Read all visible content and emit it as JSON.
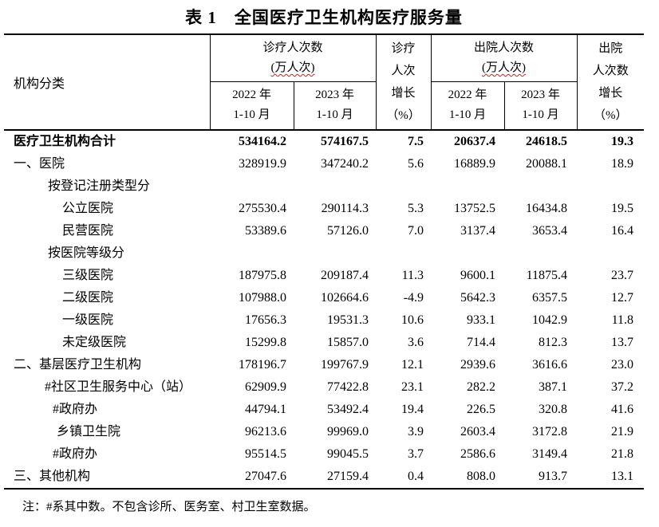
{
  "title": "表 1　全国医疗卫生机构医疗服务量",
  "header": {
    "org_col": "机构分类",
    "outpatient_group": {
      "line1": "诊疗人次数",
      "line2": "(万人次)"
    },
    "outpatient_growth": {
      "line1": "诊疗",
      "line2": "人次",
      "line3": "增长",
      "line4": "（%）"
    },
    "discharge_group": {
      "line1": "出院人次数",
      "line2": "(万人次)"
    },
    "discharge_growth": {
      "line1": "出院",
      "line2": "人次数",
      "line3": "增长",
      "line4": "（%）"
    },
    "year_2022": {
      "line1": "2022 年",
      "line2": "1-10 月"
    },
    "year_2023": {
      "line1": "2023 年",
      "line2": "1-10 月"
    }
  },
  "table": {
    "rows": [
      {
        "label": "医疗卫生机构合计",
        "indent": 12,
        "bold": true,
        "values": [
          "534164.2",
          "574167.5",
          "7.5",
          "20637.4",
          "24618.5",
          "19.3"
        ]
      },
      {
        "label": "一、医院",
        "indent": 12,
        "bold": false,
        "values": [
          "328919.9",
          "347240.2",
          "5.6",
          "16889.9",
          "20088.1",
          "18.9"
        ]
      },
      {
        "label": "按登记注册类型分",
        "indent": 55,
        "bold": false,
        "values": [
          "",
          "",
          "",
          "",
          "",
          ""
        ]
      },
      {
        "label": "公立医院",
        "indent": 73,
        "bold": false,
        "values": [
          "275530.4",
          "290114.3",
          "5.3",
          "13752.5",
          "16434.8",
          "19.5"
        ]
      },
      {
        "label": "民营医院",
        "indent": 73,
        "bold": false,
        "values": [
          "53389.6",
          "57126.0",
          "7.0",
          "3137.4",
          "3653.4",
          "16.4"
        ]
      },
      {
        "label": "按医院等级分",
        "indent": 55,
        "bold": false,
        "values": [
          "",
          "",
          "",
          "",
          "",
          ""
        ]
      },
      {
        "label": "三级医院",
        "indent": 73,
        "bold": false,
        "values": [
          "187975.8",
          "209187.4",
          "11.3",
          "9600.1",
          "11875.4",
          "23.7"
        ]
      },
      {
        "label": "二级医院",
        "indent": 73,
        "bold": false,
        "values": [
          "107988.0",
          "102664.6",
          "-4.9",
          "5642.3",
          "6357.5",
          "12.7"
        ]
      },
      {
        "label": "一级医院",
        "indent": 73,
        "bold": false,
        "values": [
          "17656.3",
          "19531.3",
          "10.6",
          "933.1",
          "1042.9",
          "11.8"
        ]
      },
      {
        "label": "未定级医院",
        "indent": 73,
        "bold": false,
        "values": [
          "15299.8",
          "15857.0",
          "3.6",
          "714.4",
          "812.3",
          "13.7"
        ]
      },
      {
        "label": "二、基层医疗卫生机构",
        "indent": 12,
        "bold": false,
        "values": [
          "178196.7",
          "199767.9",
          "12.1",
          "2939.6",
          "3616.6",
          "23.0"
        ]
      },
      {
        "label": "#社区卫生服务中心（站）",
        "indent": 51,
        "bold": false,
        "values": [
          "62909.9",
          "77422.8",
          "23.1",
          "282.2",
          "387.1",
          "37.2"
        ]
      },
      {
        "label": "#政府办",
        "indent": 61,
        "bold": false,
        "values": [
          "44794.1",
          "53492.4",
          "19.4",
          "226.5",
          "320.8",
          "41.6"
        ]
      },
      {
        "label": "乡镇卫生院",
        "indent": 66,
        "bold": false,
        "values": [
          "96213.6",
          "99969.0",
          "3.9",
          "2603.4",
          "3172.8",
          "21.9"
        ]
      },
      {
        "label": "#政府办",
        "indent": 61,
        "bold": false,
        "values": [
          "95514.5",
          "99045.5",
          "3.7",
          "2586.6",
          "3149.4",
          "21.8"
        ]
      },
      {
        "label": "三、其他机构",
        "indent": 12,
        "bold": false,
        "values": [
          "27047.6",
          "27159.4",
          "0.4",
          "808.0",
          "913.7",
          "13.1"
        ]
      }
    ]
  },
  "footnote": "注：#系其中数。不包含诊所、医务室、村卫生室数据。",
  "colors": {
    "border": "#000000",
    "wavy_underline": "#d02020",
    "text": "#000000"
  }
}
